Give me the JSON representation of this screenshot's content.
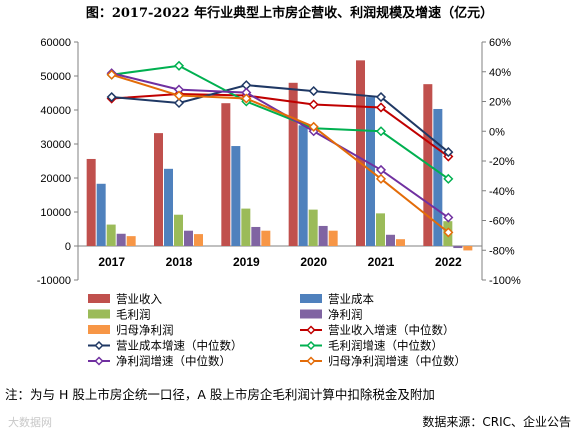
{
  "title": "图：2017-2022 年行业典型上市房企营收、利润规模及增速（亿元）",
  "note": "注：为与 H 股上市房企统一口径，A 股上市房企毛利润计算中扣除税金及附加",
  "source": "数据来源：CRIC、企业公告",
  "watermark": "大数据网",
  "chart_data": {
    "type": "bar",
    "categories": [
      "2017",
      "2018",
      "2019",
      "2020",
      "2021",
      "2022"
    ],
    "ylim": [
      -10000,
      60000
    ],
    "yticks": [
      "60000",
      "50000",
      "40000",
      "30000",
      "20000",
      "10000",
      "0",
      "-10000"
    ],
    "y2lim": [
      -100,
      60
    ],
    "y2ticks": [
      "60%",
      "40%",
      "20%",
      "0%",
      "-20%",
      "-40%",
      "-60%",
      "-80%",
      "-100%"
    ],
    "bar_series": [
      {
        "name": "营业收入",
        "color": "#c0504d",
        "values": [
          25600,
          33200,
          42000,
          48000,
          54600,
          47600
        ]
      },
      {
        "name": "营业成本",
        "color": "#4f81bd",
        "values": [
          18300,
          22700,
          29400,
          35500,
          43800,
          40300
        ]
      },
      {
        "name": "毛利润",
        "color": "#9bbb59",
        "values": [
          6300,
          9200,
          11000,
          10700,
          9600,
          7300
        ]
      },
      {
        "name": "净利润",
        "color": "#8064a2",
        "values": [
          3600,
          4500,
          5600,
          5900,
          3300,
          -600
        ]
      },
      {
        "name": "归母净利润",
        "color": "#f79646",
        "values": [
          2900,
          3500,
          4500,
          4500,
          2000,
          -1300
        ]
      }
    ],
    "line_series": [
      {
        "name": "营业收入增速（中位数）",
        "color": "#c00000",
        "values": [
          22,
          25,
          24,
          18,
          16,
          -17
        ]
      },
      {
        "name": "营业成本增速（中位数）",
        "color": "#1f3864",
        "values": [
          23,
          19,
          31,
          27,
          23,
          -14
        ]
      },
      {
        "name": "毛利润增速（中位数）",
        "color": "#00b050",
        "values": [
          38,
          44,
          20,
          2,
          0,
          -32
        ]
      },
      {
        "name": "净利润增速（中位数）",
        "color": "#7030a0",
        "values": [
          39,
          28,
          26,
          0,
          -26,
          -58
        ]
      },
      {
        "name": "归母净利润增速（中位数）",
        "color": "#e36c09",
        "values": [
          38,
          24,
          22,
          3,
          -32,
          -68
        ]
      }
    ]
  }
}
